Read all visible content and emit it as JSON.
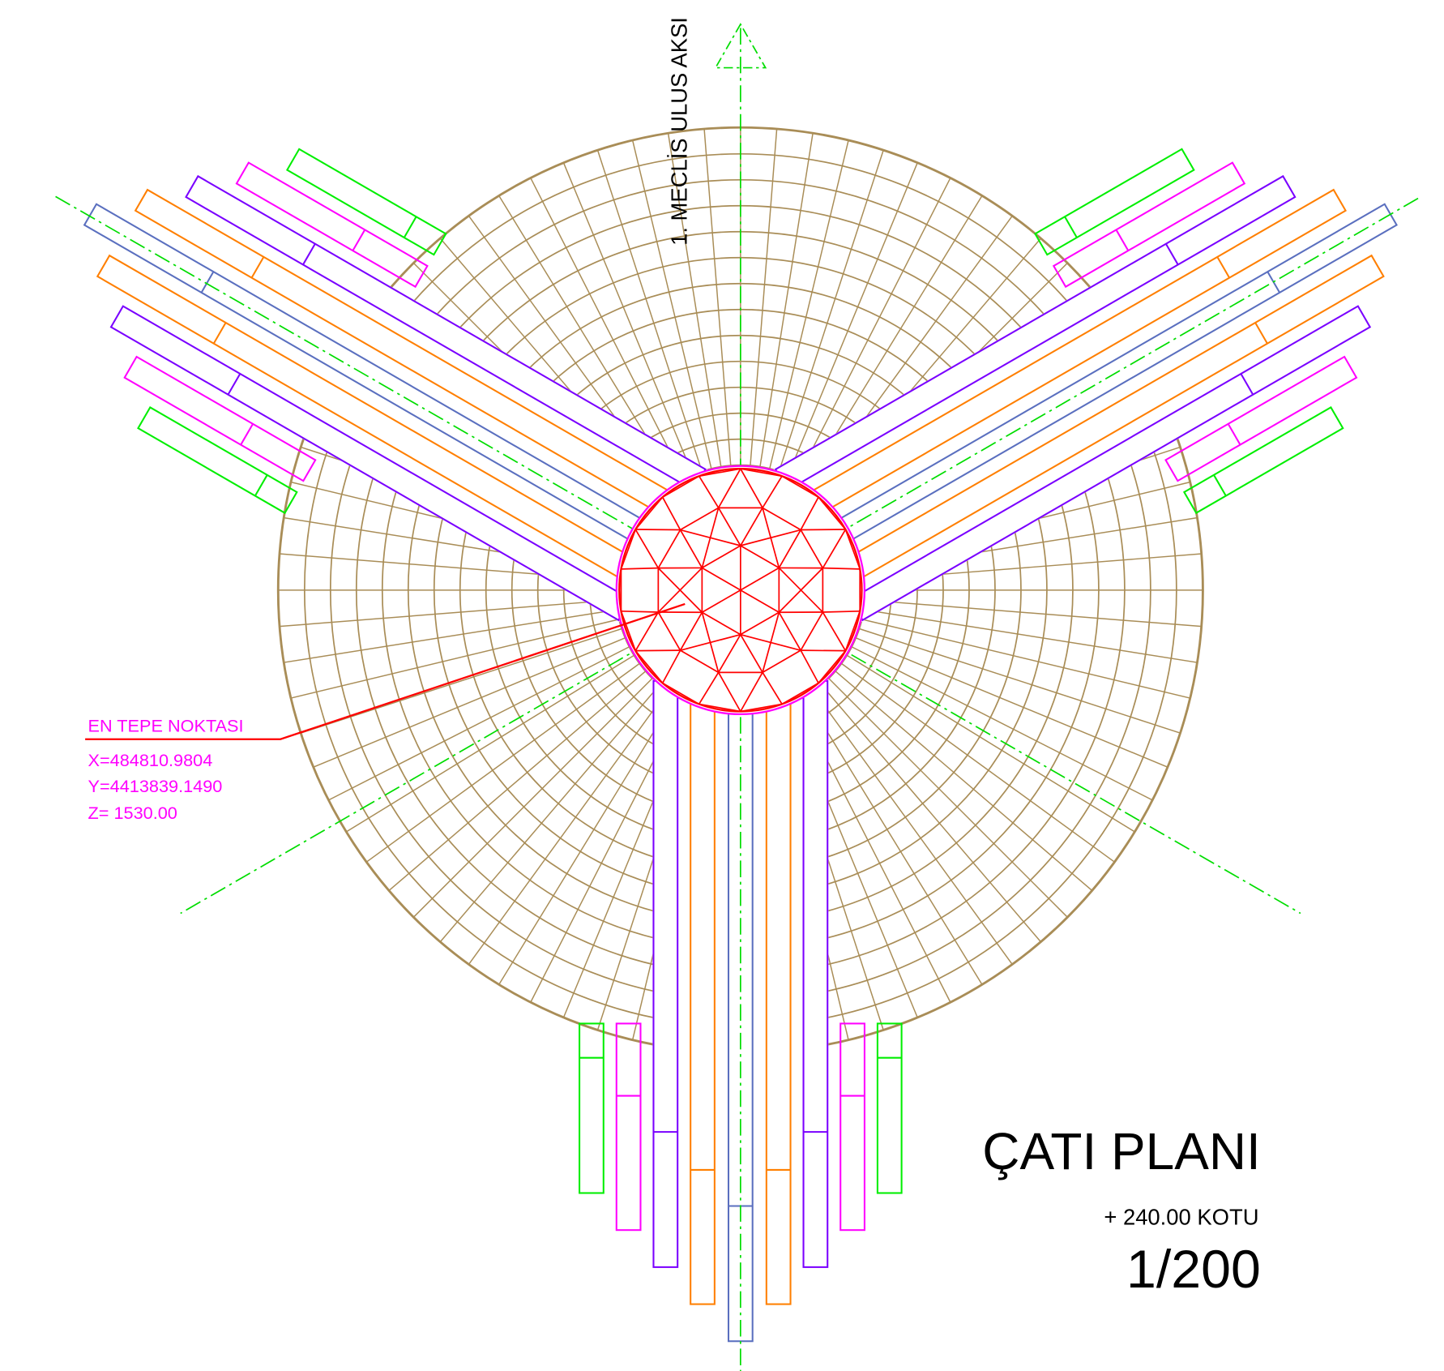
{
  "axis_label": "1. MECLİS ULUS AKSI",
  "annotation": {
    "title": "EN TEPE NOKTASI",
    "x": "X=484810.9804",
    "y": "Y=4413839.1490",
    "z": "Z=   1530.00"
  },
  "title": "ÇATI PLANI",
  "elevation": "+ 240.00 KOTU",
  "scale": "1/200"
}
